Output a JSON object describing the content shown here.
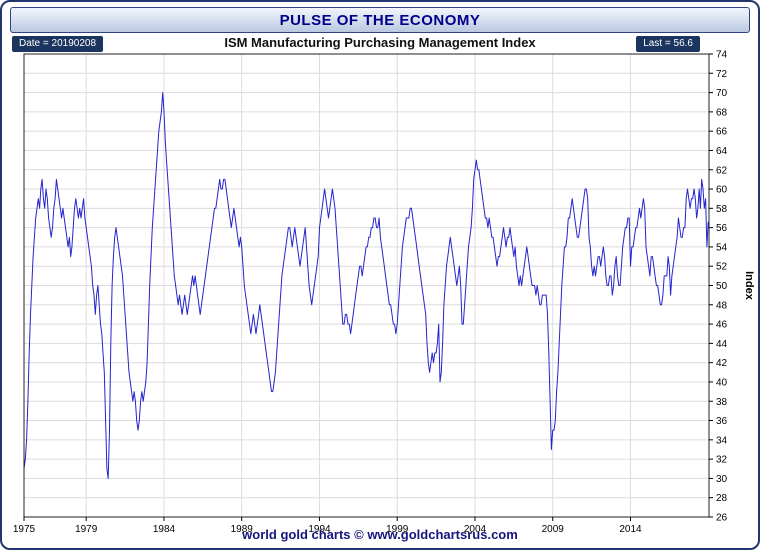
{
  "window": {
    "title": "PULSE OF THE ECONOMY"
  },
  "header": {
    "date_label": "Date = 20190208",
    "subtitle": "ISM Manufacturing Purchasing Management Index",
    "last_label": "Last = 56.6"
  },
  "footer": {
    "credit": "world gold charts © www.goldchartsrus.com"
  },
  "colors": {
    "line": "#2424d0",
    "grid": "#dcdcdc",
    "plot_border": "#222222",
    "title_text": "#00008b",
    "frame": "#24356e",
    "badge_bg": "#1c355e",
    "footer_text": "#15157e"
  },
  "chart_data": {
    "type": "line",
    "title": "PULSE OF THE ECONOMY",
    "subtitle": "ISM Manufacturing Purchasing Management Index",
    "xlabel": "",
    "ylabel": "Index",
    "ylim": [
      26,
      74
    ],
    "y_tick_step": 2,
    "x_domain": [
      1975,
      2019.05
    ],
    "x_ticks": [
      1975,
      1979,
      1984,
      1989,
      1994,
      1999,
      2004,
      2009,
      2014
    ],
    "grid": true,
    "legend": "none",
    "frequency": "monthly",
    "start_year": 1975,
    "date_stamp": "20190208",
    "last_value": 56.6,
    "series": [
      {
        "name": "ISM Manufacturing PMI",
        "monthly_values_by_year": [
          [
            31,
            32,
            34,
            38,
            43,
            47,
            50,
            53,
            55,
            57,
            58,
            59
          ],
          [
            58,
            60,
            61,
            59,
            58,
            60,
            59,
            57,
            56,
            55,
            56,
            58
          ],
          [
            59,
            61,
            60,
            59,
            58,
            57,
            58,
            57,
            56,
            55,
            54,
            55
          ],
          [
            53,
            54,
            56,
            58,
            59,
            58,
            57,
            58,
            57,
            58,
            59,
            57
          ],
          [
            56,
            55,
            54,
            53,
            52,
            50,
            49,
            47,
            49,
            50,
            48,
            46
          ],
          [
            45,
            43,
            41,
            36,
            31,
            30,
            35,
            44,
            50,
            53,
            55,
            56
          ],
          [
            55,
            54,
            53,
            52,
            51,
            49,
            47,
            45,
            43,
            41,
            40,
            39
          ],
          [
            38,
            39,
            38,
            36,
            35,
            36,
            38,
            39,
            38,
            39,
            40,
            42
          ],
          [
            46,
            50,
            53,
            56,
            58,
            60,
            62,
            64,
            66,
            67,
            68,
            70
          ],
          [
            68,
            65,
            63,
            61,
            59,
            57,
            55,
            53,
            51,
            50,
            49,
            48
          ],
          [
            49,
            48,
            47,
            48,
            49,
            48,
            47,
            48,
            49,
            50,
            51,
            50
          ],
          [
            51,
            50,
            49,
            48,
            47,
            48,
            49,
            50,
            51,
            52,
            53,
            54
          ],
          [
            55,
            56,
            57,
            58,
            58,
            59,
            60,
            61,
            60,
            60,
            61,
            61
          ],
          [
            60,
            59,
            58,
            57,
            56,
            57,
            58,
            57,
            56,
            55,
            54,
            55
          ],
          [
            54,
            52,
            50,
            49,
            48,
            47,
            46,
            45,
            46,
            47,
            46,
            45
          ],
          [
            46,
            47,
            48,
            47,
            46,
            45,
            44,
            43,
            42,
            41,
            40,
            39
          ],
          [
            39,
            40,
            41,
            43,
            45,
            47,
            49,
            51,
            52,
            53,
            54,
            55
          ],
          [
            56,
            56,
            55,
            54,
            55,
            56,
            55,
            54,
            53,
            52,
            53,
            54
          ],
          [
            55,
            56,
            54,
            52,
            50,
            49,
            48,
            49,
            50,
            51,
            52,
            53
          ],
          [
            56,
            57,
            58,
            59,
            60,
            59,
            58,
            57,
            58,
            59,
            60,
            59
          ],
          [
            58,
            56,
            54,
            52,
            50,
            48,
            46,
            46,
            47,
            47,
            46,
            46
          ],
          [
            45,
            46,
            47,
            48,
            49,
            50,
            51,
            52,
            52,
            51,
            52,
            53
          ],
          [
            54,
            54,
            55,
            55,
            56,
            56,
            57,
            57,
            56,
            56,
            57,
            55
          ],
          [
            54,
            53,
            52,
            51,
            50,
            49,
            48,
            48,
            47,
            46,
            46,
            45
          ],
          [
            46,
            48,
            50,
            52,
            54,
            55,
            56,
            57,
            57,
            57,
            58,
            58
          ],
          [
            57,
            56,
            55,
            54,
            53,
            52,
            51,
            50,
            49,
            48,
            47,
            44
          ],
          [
            42,
            41,
            42,
            43,
            42,
            43,
            43,
            44,
            46,
            40,
            41,
            44
          ],
          [
            48,
            50,
            52,
            53,
            54,
            55,
            54,
            53,
            52,
            51,
            50,
            51
          ],
          [
            52,
            50,
            46,
            46,
            48,
            50,
            52,
            54,
            55,
            56,
            58,
            61
          ],
          [
            62,
            63,
            62,
            62,
            61,
            60,
            59,
            58,
            57,
            57,
            56,
            57
          ],
          [
            56,
            55,
            55,
            54,
            53,
            52,
            53,
            53,
            54,
            55,
            56,
            55
          ],
          [
            54,
            55,
            55,
            56,
            55,
            54,
            53,
            54,
            52,
            51,
            50,
            51
          ],
          [
            50,
            51,
            52,
            53,
            54,
            53,
            52,
            51,
            50,
            50,
            50,
            49
          ],
          [
            50,
            49,
            48,
            48,
            49,
            49,
            49,
            49,
            47,
            43,
            38,
            33
          ],
          [
            35,
            35,
            36,
            39,
            41,
            44,
            47,
            50,
            52,
            54,
            54,
            55
          ],
          [
            57,
            57,
            58,
            59,
            58,
            57,
            56,
            55,
            55,
            56,
            57,
            58
          ],
          [
            59,
            60,
            60,
            59,
            55,
            54,
            52,
            51,
            52,
            51,
            52,
            53
          ],
          [
            53,
            52,
            53,
            54,
            53,
            51,
            50,
            50,
            51,
            51,
            49,
            50
          ],
          [
            52,
            53,
            51,
            50,
            50,
            52,
            54,
            55,
            56,
            56,
            57,
            57
          ],
          [
            52,
            54,
            54,
            55,
            56,
            56,
            57,
            58,
            57,
            58,
            59,
            58
          ],
          [
            54,
            53,
            52,
            51,
            53,
            53,
            52,
            51,
            50,
            50,
            49,
            48
          ],
          [
            48,
            49,
            51,
            51,
            51,
            53,
            52,
            49,
            51,
            52,
            53,
            54
          ],
          [
            55,
            57,
            56,
            55,
            55,
            56,
            56,
            59,
            60,
            59,
            58,
            59
          ],
          [
            59,
            60,
            59,
            57,
            58,
            60,
            58,
            61,
            60,
            58,
            59,
            54
          ],
          [
            56.6
          ]
        ]
      }
    ]
  }
}
